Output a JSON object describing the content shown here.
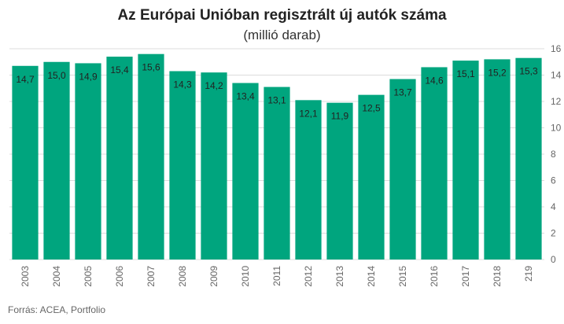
{
  "colors": {
    "bar": "#00a57e",
    "grid": "#dcdcdc",
    "text": "#333333",
    "axis": "#666666"
  },
  "chart_data": {
    "type": "bar",
    "title": "Az Európai Unióban regisztrált új autók száma",
    "subtitle": "(millió darab)",
    "categories": [
      "2003",
      "2004",
      "2005",
      "2006",
      "2007",
      "2008",
      "2009",
      "2010",
      "2011",
      "2012",
      "2013",
      "2014",
      "2015",
      "2016",
      "2017",
      "2018",
      "219"
    ],
    "values": [
      14.7,
      15.0,
      14.9,
      15.4,
      15.6,
      14.3,
      14.2,
      13.4,
      13.1,
      12.1,
      11.9,
      12.5,
      13.7,
      14.6,
      15.1,
      15.2,
      15.3
    ],
    "labels": [
      "14,7",
      "15,0",
      "14,9",
      "15,4",
      "15,6",
      "14,3",
      "14,2",
      "13,4",
      "13,1",
      "12,1",
      "11,9",
      "12,5",
      "13,7",
      "14,6",
      "15,1",
      "15,2",
      "15,3"
    ],
    "ylim": [
      0,
      16
    ],
    "yticks": [
      "0",
      "2",
      "4",
      "6",
      "8",
      "10",
      "12",
      "14",
      "16"
    ],
    "y_axis_side": "right",
    "grid": true
  },
  "source": "Forrás: ACEA, Portfolio"
}
